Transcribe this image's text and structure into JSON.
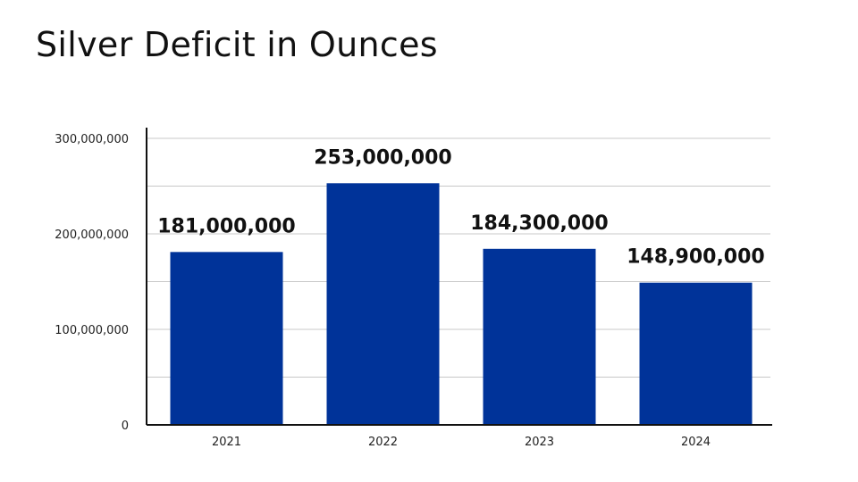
{
  "chart_data": {
    "type": "bar",
    "title": "Silver Deficit in Ounces",
    "xlabel": "",
    "ylabel": "",
    "categories": [
      "2021",
      "2022",
      "2023",
      "2024"
    ],
    "values": [
      181000000,
      253000000,
      184300000,
      148900000
    ],
    "data_labels": [
      "181,000,000",
      "253,000,000",
      "184,300,000",
      "148,900,000"
    ],
    "ylim": [
      0,
      300000000
    ],
    "y_ticks": [
      0,
      100000000,
      200000000,
      300000000
    ],
    "y_tick_labels": [
      "0",
      "100,000,000",
      "200,000,000",
      "300,000,000"
    ],
    "minor_gridlines": [
      50000000,
      150000000,
      250000000
    ],
    "grid": true,
    "legend": "none",
    "bar_color": "#003399"
  }
}
